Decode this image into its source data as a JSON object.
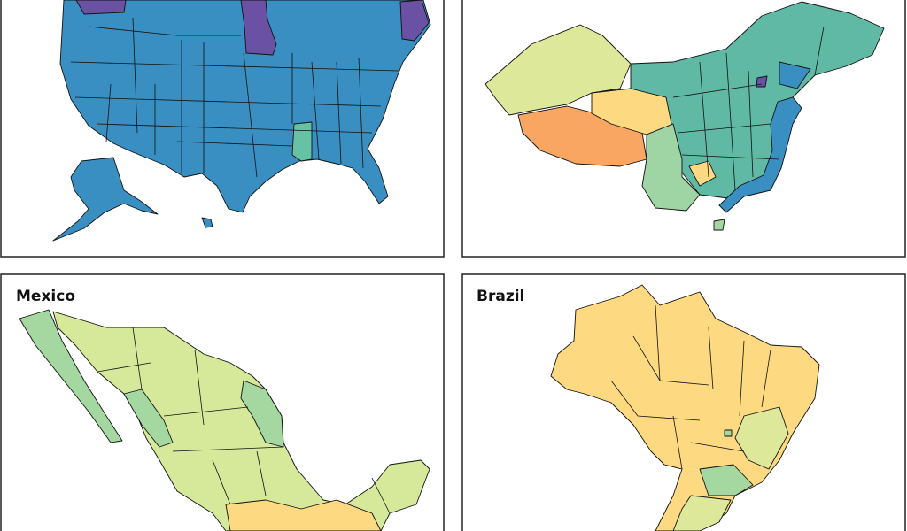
{
  "panels": [
    {
      "title": "Mexico"
    },
    {
      "title": "Brazil"
    }
  ]
}
